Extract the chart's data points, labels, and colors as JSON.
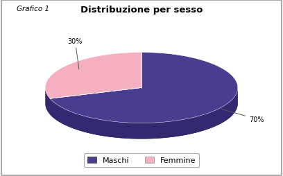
{
  "title": "Distribuzione per sesso",
  "grafico_label": "Grafico 1",
  "slices": [
    70,
    30
  ],
  "labels": [
    "Maschi",
    "Femmine"
  ],
  "colors": [
    "#4a3d8f",
    "#f4afc0"
  ],
  "shadow_colors": [
    "#332970",
    "#d08898"
  ],
  "pct_labels": [
    "70%",
    "30%"
  ],
  "legend_labels": [
    "Maschi",
    "Femmine"
  ],
  "background_color": "#ffffff",
  "border_color": "#aaaaaa",
  "startangle": 90,
  "depth": 0.09
}
